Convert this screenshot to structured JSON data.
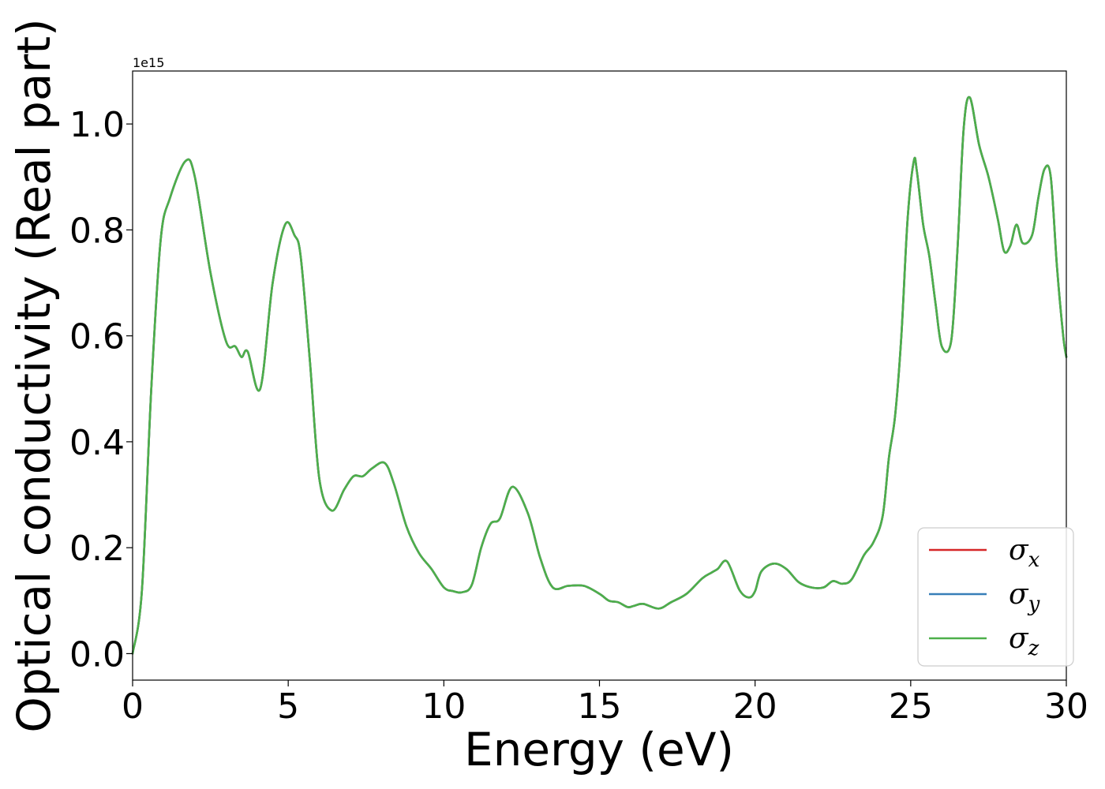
{
  "chart_data": {
    "type": "line",
    "xlabel": "Energy (eV)",
    "ylabel": "Optical conductivity (Real part)",
    "y_offset_label": "1e15",
    "xlim": [
      0,
      30
    ],
    "ylim": [
      -0.05,
      1.1
    ],
    "x_ticks": [
      0,
      5,
      10,
      15,
      20,
      25,
      30
    ],
    "y_ticks": [
      0.0,
      0.2,
      0.4,
      0.6,
      0.8,
      1.0
    ],
    "x_tick_labels": [
      "0",
      "5",
      "10",
      "15",
      "20",
      "25",
      "30"
    ],
    "y_tick_labels": [
      "0.0",
      "0.2",
      "0.4",
      "0.6",
      "0.8",
      "1.0"
    ],
    "grid": false,
    "legend_position": "lower-right",
    "x": [
      0.0,
      0.3,
      0.6,
      0.9,
      1.2,
      1.7,
      2.0,
      2.5,
      3.0,
      3.3,
      3.5,
      3.7,
      4.1,
      4.5,
      4.9,
      5.2,
      5.4,
      5.7,
      6.0,
      6.4,
      6.8,
      7.1,
      7.4,
      7.7,
      8.1,
      8.4,
      8.8,
      9.2,
      9.6,
      10.0,
      10.3,
      10.6,
      10.9,
      11.2,
      11.5,
      11.8,
      12.2,
      12.7,
      13.1,
      13.5,
      14.0,
      14.5,
      15.0,
      15.3,
      15.6,
      15.9,
      16.1,
      16.4,
      16.9,
      17.3,
      17.8,
      18.3,
      18.6,
      18.8,
      19.1,
      19.5,
      19.8,
      20.0,
      20.2,
      20.6,
      21.0,
      21.4,
      21.8,
      22.2,
      22.5,
      22.8,
      23.1,
      23.5,
      23.8,
      24.1,
      24.3,
      24.5,
      24.7,
      24.9,
      25.1,
      25.2,
      25.4,
      25.6,
      25.8,
      26.0,
      26.3,
      26.5,
      26.7,
      26.9,
      27.2,
      27.5,
      27.8,
      28.0,
      28.2,
      28.4,
      28.6,
      28.9,
      29.1,
      29.3,
      29.5,
      29.7,
      29.9,
      30.0
    ],
    "series": [
      {
        "name": "σ_x",
        "label_base": "σ",
        "label_sub": "x",
        "color": "#d62728",
        "values": [
          0.0,
          0.12,
          0.5,
          0.78,
          0.86,
          0.93,
          0.9,
          0.72,
          0.59,
          0.58,
          0.56,
          0.57,
          0.5,
          0.7,
          0.81,
          0.79,
          0.75,
          0.55,
          0.33,
          0.27,
          0.31,
          0.335,
          0.335,
          0.35,
          0.36,
          0.32,
          0.24,
          0.19,
          0.16,
          0.125,
          0.118,
          0.116,
          0.13,
          0.2,
          0.245,
          0.255,
          0.315,
          0.265,
          0.18,
          0.125,
          0.128,
          0.128,
          0.113,
          0.1,
          0.097,
          0.088,
          0.09,
          0.094,
          0.085,
          0.097,
          0.113,
          0.142,
          0.153,
          0.16,
          0.174,
          0.12,
          0.106,
          0.118,
          0.155,
          0.17,
          0.16,
          0.135,
          0.125,
          0.125,
          0.137,
          0.132,
          0.14,
          0.186,
          0.21,
          0.26,
          0.37,
          0.45,
          0.6,
          0.82,
          0.93,
          0.91,
          0.81,
          0.75,
          0.66,
          0.58,
          0.59,
          0.76,
          0.99,
          1.05,
          0.96,
          0.9,
          0.82,
          0.76,
          0.77,
          0.81,
          0.775,
          0.79,
          0.86,
          0.915,
          0.9,
          0.73,
          0.6,
          0.56
        ]
      },
      {
        "name": "σ_y",
        "label_base": "σ",
        "label_sub": "y",
        "color": "#377eb8",
        "values": [
          0.0,
          0.12,
          0.5,
          0.78,
          0.86,
          0.93,
          0.9,
          0.72,
          0.59,
          0.58,
          0.56,
          0.57,
          0.5,
          0.7,
          0.81,
          0.79,
          0.75,
          0.55,
          0.33,
          0.27,
          0.31,
          0.335,
          0.335,
          0.35,
          0.36,
          0.32,
          0.24,
          0.19,
          0.16,
          0.125,
          0.118,
          0.116,
          0.13,
          0.2,
          0.245,
          0.255,
          0.315,
          0.265,
          0.18,
          0.125,
          0.128,
          0.128,
          0.113,
          0.1,
          0.097,
          0.088,
          0.09,
          0.094,
          0.085,
          0.097,
          0.113,
          0.142,
          0.153,
          0.16,
          0.174,
          0.12,
          0.106,
          0.118,
          0.155,
          0.17,
          0.16,
          0.135,
          0.125,
          0.125,
          0.137,
          0.132,
          0.14,
          0.186,
          0.21,
          0.26,
          0.37,
          0.45,
          0.6,
          0.82,
          0.93,
          0.91,
          0.81,
          0.75,
          0.66,
          0.58,
          0.59,
          0.76,
          0.99,
          1.05,
          0.96,
          0.9,
          0.82,
          0.76,
          0.77,
          0.81,
          0.775,
          0.79,
          0.86,
          0.915,
          0.9,
          0.73,
          0.6,
          0.56
        ]
      },
      {
        "name": "σ_z",
        "label_base": "σ",
        "label_sub": "z",
        "color": "#4daf4a",
        "values": [
          0.0,
          0.12,
          0.5,
          0.78,
          0.86,
          0.93,
          0.9,
          0.72,
          0.59,
          0.58,
          0.56,
          0.57,
          0.5,
          0.7,
          0.81,
          0.79,
          0.75,
          0.55,
          0.33,
          0.27,
          0.31,
          0.335,
          0.335,
          0.35,
          0.36,
          0.32,
          0.24,
          0.19,
          0.16,
          0.125,
          0.118,
          0.116,
          0.13,
          0.2,
          0.245,
          0.255,
          0.315,
          0.265,
          0.18,
          0.125,
          0.128,
          0.128,
          0.113,
          0.1,
          0.097,
          0.088,
          0.09,
          0.094,
          0.085,
          0.097,
          0.113,
          0.142,
          0.153,
          0.16,
          0.174,
          0.12,
          0.106,
          0.118,
          0.155,
          0.17,
          0.16,
          0.135,
          0.125,
          0.125,
          0.137,
          0.132,
          0.14,
          0.186,
          0.21,
          0.26,
          0.37,
          0.45,
          0.6,
          0.82,
          0.93,
          0.91,
          0.81,
          0.75,
          0.66,
          0.58,
          0.59,
          0.76,
          0.99,
          1.05,
          0.96,
          0.9,
          0.82,
          0.76,
          0.77,
          0.81,
          0.775,
          0.79,
          0.86,
          0.915,
          0.9,
          0.73,
          0.6,
          0.56
        ]
      }
    ]
  }
}
